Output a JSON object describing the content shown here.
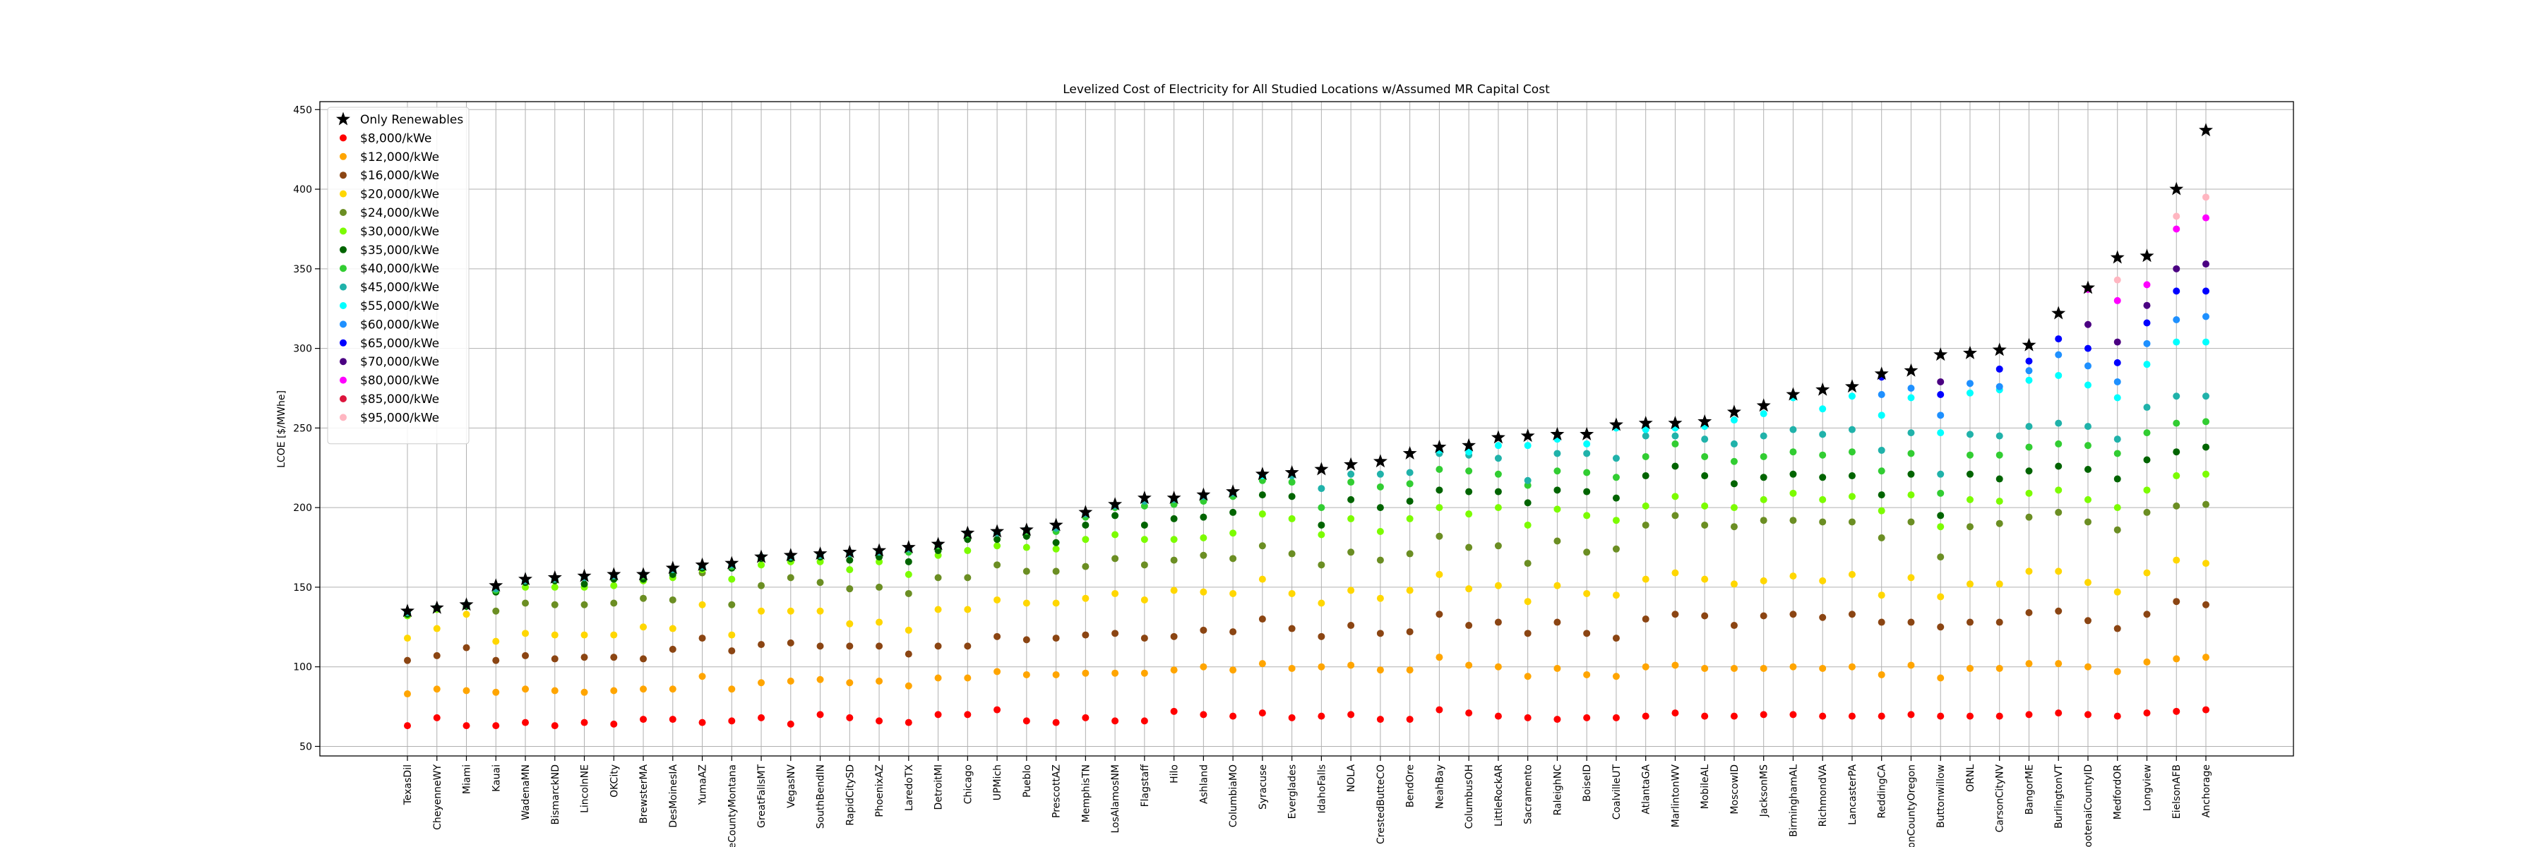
{
  "chart_data": {
    "type": "scatter",
    "title": "Levelized Cost of Electricity for All Studied Locations w/Assumed MR Capital Cost",
    "xlabel": "",
    "ylabel": "LCOE [$/MWhe]",
    "ylim": [
      44,
      455
    ],
    "yticks": [
      50,
      100,
      150,
      200,
      250,
      300,
      350,
      400,
      450
    ],
    "grid": true,
    "legend_position": "upper-left",
    "categories": [
      "TexasDil",
      "CheyenneWY",
      "Miami",
      "Kauai",
      "WadenaMN",
      "BismarckND",
      "LincolnNE",
      "OKCity",
      "BrewsterMA",
      "DesMoinesIA",
      "YumaAZ",
      "eCountyMontana",
      "GreatFallsMT",
      "VegasNV",
      "SouthBendIN",
      "RapidCitySD",
      "PhoenixAZ",
      "LaredoTX",
      "DetroitMI",
      "Chicago",
      "UPMich",
      "Pueblo",
      "PrescottAZ",
      "MemphisTN",
      "LosAlamosNM",
      "Flagstaff",
      "Hilo",
      "Ashland",
      "ColumbiaMO",
      "Syracuse",
      "Everglades",
      "IdahoFalls",
      "NOLA",
      "CrestedButteCO",
      "BendOre",
      "NeahBay",
      "ColumbusOH",
      "LittleRockAR",
      "Sacramento",
      "RaleighNC",
      "BoiseID",
      "CoalvilleUT",
      "AtlantaGA",
      "MarlintonWV",
      "MobileAL",
      "MoscowID",
      "JacksonMS",
      "BirminghamAL",
      "RichmondVA",
      "LancasterPA",
      "ReddingCA",
      "onCountyOregon",
      "Buttonwillow",
      "ORNL",
      "CarsonCityNV",
      "BangorME",
      "BurlingtonVT",
      "ootenaiCountyID",
      "MedfordOR",
      "Longview",
      "EielsonAFB",
      "Anchorage"
    ],
    "series": [
      {
        "name": "Only Renewables",
        "color": "#000000",
        "marker": "star",
        "values": [
          135,
          137,
          139,
          151,
          155,
          156,
          157,
          158,
          158,
          162,
          164,
          165,
          169,
          170,
          171,
          172,
          173,
          175,
          177,
          184,
          185,
          186,
          189,
          197,
          202,
          206,
          206,
          208,
          210,
          221,
          222,
          224,
          227,
          229,
          234,
          238,
          239,
          244,
          245,
          246,
          246,
          252,
          253,
          253,
          254,
          260,
          264,
          271,
          274,
          276,
          284,
          286,
          296,
          297,
          299,
          302,
          322,
          338,
          357,
          358,
          400,
          437
        ]
      },
      {
        "name": "$8,000/kWe",
        "color": "#ff0000",
        "marker": "dot",
        "values": [
          63,
          68,
          63,
          63,
          65,
          63,
          65,
          64,
          67,
          67,
          65,
          66,
          68,
          64,
          70,
          68,
          66,
          65,
          70,
          70,
          73,
          66,
          65,
          68,
          66,
          66,
          72,
          70,
          69,
          71,
          68,
          69,
          70,
          67,
          67,
          73,
          71,
          69,
          68,
          67,
          68,
          68,
          69,
          71,
          69,
          69,
          70,
          70,
          69,
          69,
          69,
          70,
          69,
          69,
          69,
          70,
          71,
          70,
          69,
          71,
          72,
          73
        ]
      },
      {
        "name": "$12,000/kWe",
        "color": "#ffa500",
        "marker": "dot",
        "values": [
          83,
          86,
          85,
          84,
          86,
          85,
          84,
          85,
          86,
          86,
          94,
          86,
          90,
          91,
          92,
          90,
          91,
          88,
          93,
          93,
          97,
          95,
          95,
          96,
          96,
          96,
          98,
          100,
          98,
          102,
          99,
          100,
          101,
          98,
          98,
          106,
          101,
          100,
          94,
          99,
          95,
          94,
          100,
          101,
          99,
          99,
          99,
          100,
          99,
          100,
          95,
          101,
          93,
          99,
          99,
          102,
          102,
          100,
          97,
          103,
          105,
          106
        ]
      },
      {
        "name": "$16,000/kWe",
        "color": "#8b4513",
        "marker": "dot",
        "values": [
          104,
          107,
          112,
          104,
          107,
          105,
          106,
          106,
          105,
          111,
          118,
          110,
          114,
          115,
          113,
          113,
          113,
          108,
          113,
          113,
          119,
          117,
          118,
          120,
          121,
          118,
          119,
          123,
          122,
          130,
          124,
          119,
          126,
          121,
          122,
          133,
          126,
          128,
          121,
          128,
          121,
          118,
          130,
          133,
          132,
          126,
          132,
          133,
          131,
          133,
          128,
          128,
          125,
          128,
          128,
          134,
          135,
          129,
          124,
          133,
          141,
          139
        ]
      },
      {
        "name": "$20,000/kWe",
        "color": "#ffd700",
        "marker": "dot",
        "values": [
          118,
          124,
          133,
          116,
          121,
          120,
          120,
          120,
          125,
          124,
          139,
          120,
          135,
          135,
          135,
          127,
          128,
          123,
          136,
          136,
          142,
          140,
          140,
          143,
          146,
          142,
          148,
          147,
          146,
          155,
          146,
          140,
          148,
          143,
          148,
          158,
          149,
          151,
          141,
          151,
          146,
          145,
          155,
          159,
          155,
          152,
          154,
          157,
          154,
          158,
          145,
          156,
          144,
          152,
          152,
          160,
          160,
          153,
          147,
          159,
          167,
          165
        ]
      },
      {
        "name": "$24,000/kWe",
        "color": "#6b8e23",
        "marker": "dot",
        "values": [
          134,
          137,
          138,
          135,
          140,
          139,
          139,
          140,
          143,
          142,
          159,
          139,
          151,
          156,
          153,
          149,
          150,
          146,
          156,
          156,
          164,
          160,
          160,
          163,
          168,
          164,
          167,
          170,
          168,
          176,
          171,
          164,
          172,
          167,
          171,
          182,
          175,
          176,
          165,
          179,
          172,
          174,
          189,
          195,
          189,
          188,
          192,
          192,
          191,
          191,
          181,
          191,
          169,
          188,
          190,
          194,
          197,
          191,
          186,
          197,
          201,
          202
        ]
      },
      {
        "name": "$30,000/kWe",
        "color": "#7cfc00",
        "marker": "dot",
        "values": [
          132,
          136,
          138,
          147,
          150,
          150,
          150,
          151,
          154,
          156,
          161,
          155,
          164,
          166,
          166,
          161,
          166,
          158,
          170,
          173,
          176,
          175,
          174,
          180,
          183,
          180,
          180,
          181,
          184,
          196,
          193,
          183,
          193,
          185,
          193,
          200,
          196,
          200,
          189,
          199,
          195,
          192,
          201,
          207,
          201,
          200,
          205,
          209,
          205,
          207,
          198,
          208,
          188,
          205,
          204,
          209,
          211,
          205,
          200,
          211,
          220,
          221
        ]
      },
      {
        "name": "$35,000/kWe",
        "color": "#006400",
        "marker": "dot",
        "values": [
          133,
          137,
          138,
          147,
          153,
          154,
          152,
          155,
          155,
          158,
          162,
          162,
          168,
          168,
          169,
          167,
          169,
          166,
          173,
          180,
          180,
          182,
          178,
          189,
          195,
          189,
          193,
          194,
          197,
          208,
          207,
          189,
          205,
          200,
          204,
          211,
          210,
          210,
          203,
          211,
          210,
          206,
          220,
          226,
          220,
          215,
          219,
          221,
          219,
          220,
          208,
          221,
          195,
          221,
          218,
          223,
          226,
          224,
          218,
          230,
          235,
          238
        ]
      },
      {
        "name": "$40,000/kWe",
        "color": "#32cd32",
        "marker": "dot",
        "values": [
          134,
          137,
          139,
          148,
          154,
          155,
          156,
          157,
          157,
          161,
          163,
          163,
          169,
          169,
          170,
          171,
          172,
          172,
          176,
          183,
          184,
          185,
          185,
          194,
          200,
          201,
          202,
          204,
          207,
          217,
          216,
          200,
          216,
          213,
          215,
          224,
          223,
          221,
          214,
          223,
          222,
          219,
          232,
          240,
          232,
          229,
          232,
          235,
          233,
          235,
          223,
          234,
          209,
          233,
          233,
          238,
          240,
          239,
          234,
          247,
          253,
          254
        ]
      },
      {
        "name": "$45,000/kWe",
        "color": "#20b2aa",
        "marker": "dot",
        "values": [
          134,
          137,
          139,
          149,
          154,
          155,
          156,
          157,
          158,
          161,
          163,
          164,
          169,
          169,
          170,
          171,
          172,
          174,
          177,
          184,
          184,
          186,
          187,
          196,
          201,
          204,
          205,
          207,
          209,
          220,
          220,
          212,
          221,
          221,
          222,
          234,
          233,
          231,
          217,
          234,
          234,
          231,
          245,
          245,
          243,
          240,
          245,
          249,
          246,
          249,
          236,
          247,
          221,
          246,
          245,
          251,
          253,
          251,
          243,
          263,
          270,
          270
        ]
      },
      {
        "name": "$55,000/kWe",
        "color": "#00ffff",
        "marker": "dot",
        "values": [
          null,
          null,
          null,
          null,
          null,
          null,
          null,
          null,
          null,
          null,
          null,
          null,
          null,
          null,
          null,
          null,
          null,
          null,
          null,
          null,
          null,
          null,
          null,
          null,
          null,
          null,
          null,
          null,
          null,
          220,
          null,
          null,
          null,
          null,
          null,
          236,
          235,
          239,
          239,
          243,
          240,
          250,
          249,
          250,
          251,
          255,
          259,
          269,
          262,
          270,
          258,
          269,
          247,
          272,
          274,
          280,
          283,
          277,
          269,
          290,
          304,
          304
        ]
      },
      {
        "name": "$60,000/kWe",
        "color": "#1e90ff",
        "marker": "dot",
        "values": [
          null,
          null,
          null,
          null,
          null,
          null,
          null,
          null,
          null,
          null,
          null,
          null,
          null,
          null,
          null,
          null,
          null,
          null,
          null,
          null,
          null,
          null,
          null,
          null,
          null,
          null,
          null,
          null,
          null,
          null,
          null,
          null,
          null,
          null,
          null,
          null,
          null,
          null,
          null,
          null,
          null,
          null,
          null,
          null,
          null,
          null,
          null,
          null,
          null,
          null,
          271,
          275,
          258,
          278,
          276,
          286,
          296,
          289,
          279,
          303,
          318,
          320
        ]
      },
      {
        "name": "$65,000/kWe",
        "color": "#0000ff",
        "marker": "dot",
        "values": [
          null,
          null,
          null,
          null,
          null,
          null,
          null,
          null,
          null,
          null,
          null,
          null,
          null,
          null,
          null,
          null,
          null,
          null,
          null,
          null,
          null,
          null,
          null,
          null,
          null,
          null,
          null,
          null,
          null,
          null,
          null,
          null,
          null,
          null,
          null,
          null,
          null,
          null,
          null,
          null,
          null,
          null,
          null,
          null,
          null,
          null,
          null,
          null,
          null,
          null,
          282,
          null,
          271,
          null,
          287,
          292,
          306,
          300,
          291,
          316,
          336,
          336
        ]
      },
      {
        "name": "$70,000/kWe",
        "color": "#4b0082",
        "marker": "dot",
        "values": [
          null,
          null,
          null,
          null,
          null,
          null,
          null,
          null,
          null,
          null,
          null,
          null,
          null,
          null,
          null,
          null,
          null,
          null,
          null,
          null,
          null,
          null,
          null,
          null,
          null,
          null,
          null,
          null,
          null,
          null,
          null,
          null,
          null,
          null,
          null,
          null,
          null,
          null,
          null,
          null,
          null,
          null,
          null,
          null,
          null,
          null,
          null,
          null,
          null,
          null,
          null,
          null,
          279,
          null,
          null,
          null,
          null,
          315,
          304,
          327,
          350,
          353
        ]
      },
      {
        "name": "$80,000/kWe",
        "color": "#ff00ff",
        "marker": "dot",
        "values": [
          null,
          null,
          null,
          null,
          null,
          null,
          null,
          null,
          null,
          null,
          null,
          null,
          null,
          null,
          null,
          null,
          null,
          null,
          null,
          null,
          null,
          null,
          null,
          null,
          null,
          null,
          null,
          null,
          null,
          null,
          null,
          null,
          null,
          null,
          null,
          null,
          null,
          null,
          null,
          null,
          null,
          null,
          null,
          null,
          null,
          null,
          null,
          null,
          null,
          null,
          null,
          null,
          null,
          null,
          null,
          null,
          null,
          337,
          330,
          340,
          375,
          382
        ]
      },
      {
        "name": "$85,000/kWe",
        "color": "#dc143c",
        "marker": "dot",
        "values": [
          null,
          null,
          null,
          null,
          null,
          null,
          null,
          null,
          null,
          null,
          null,
          null,
          null,
          null,
          null,
          null,
          null,
          null,
          null,
          null,
          null,
          null,
          null,
          null,
          null,
          null,
          null,
          null,
          null,
          null,
          null,
          null,
          null,
          null,
          null,
          null,
          null,
          null,
          null,
          null,
          null,
          null,
          null,
          null,
          null,
          null,
          null,
          null,
          null,
          null,
          null,
          null,
          null,
          null,
          null,
          null,
          null,
          null,
          null,
          null,
          null,
          null
        ]
      },
      {
        "name": "$95,000/kWe",
        "color": "#ffb6c1",
        "marker": "dot",
        "values": [
          null,
          null,
          null,
          null,
          null,
          null,
          null,
          null,
          null,
          null,
          null,
          null,
          null,
          null,
          null,
          null,
          null,
          null,
          null,
          null,
          null,
          null,
          null,
          null,
          null,
          null,
          null,
          null,
          null,
          null,
          null,
          null,
          null,
          null,
          null,
          null,
          null,
          null,
          null,
          null,
          null,
          null,
          null,
          null,
          null,
          null,
          null,
          null,
          null,
          null,
          null,
          null,
          null,
          null,
          null,
          null,
          null,
          null,
          343,
          null,
          383,
          395
        ]
      }
    ]
  }
}
